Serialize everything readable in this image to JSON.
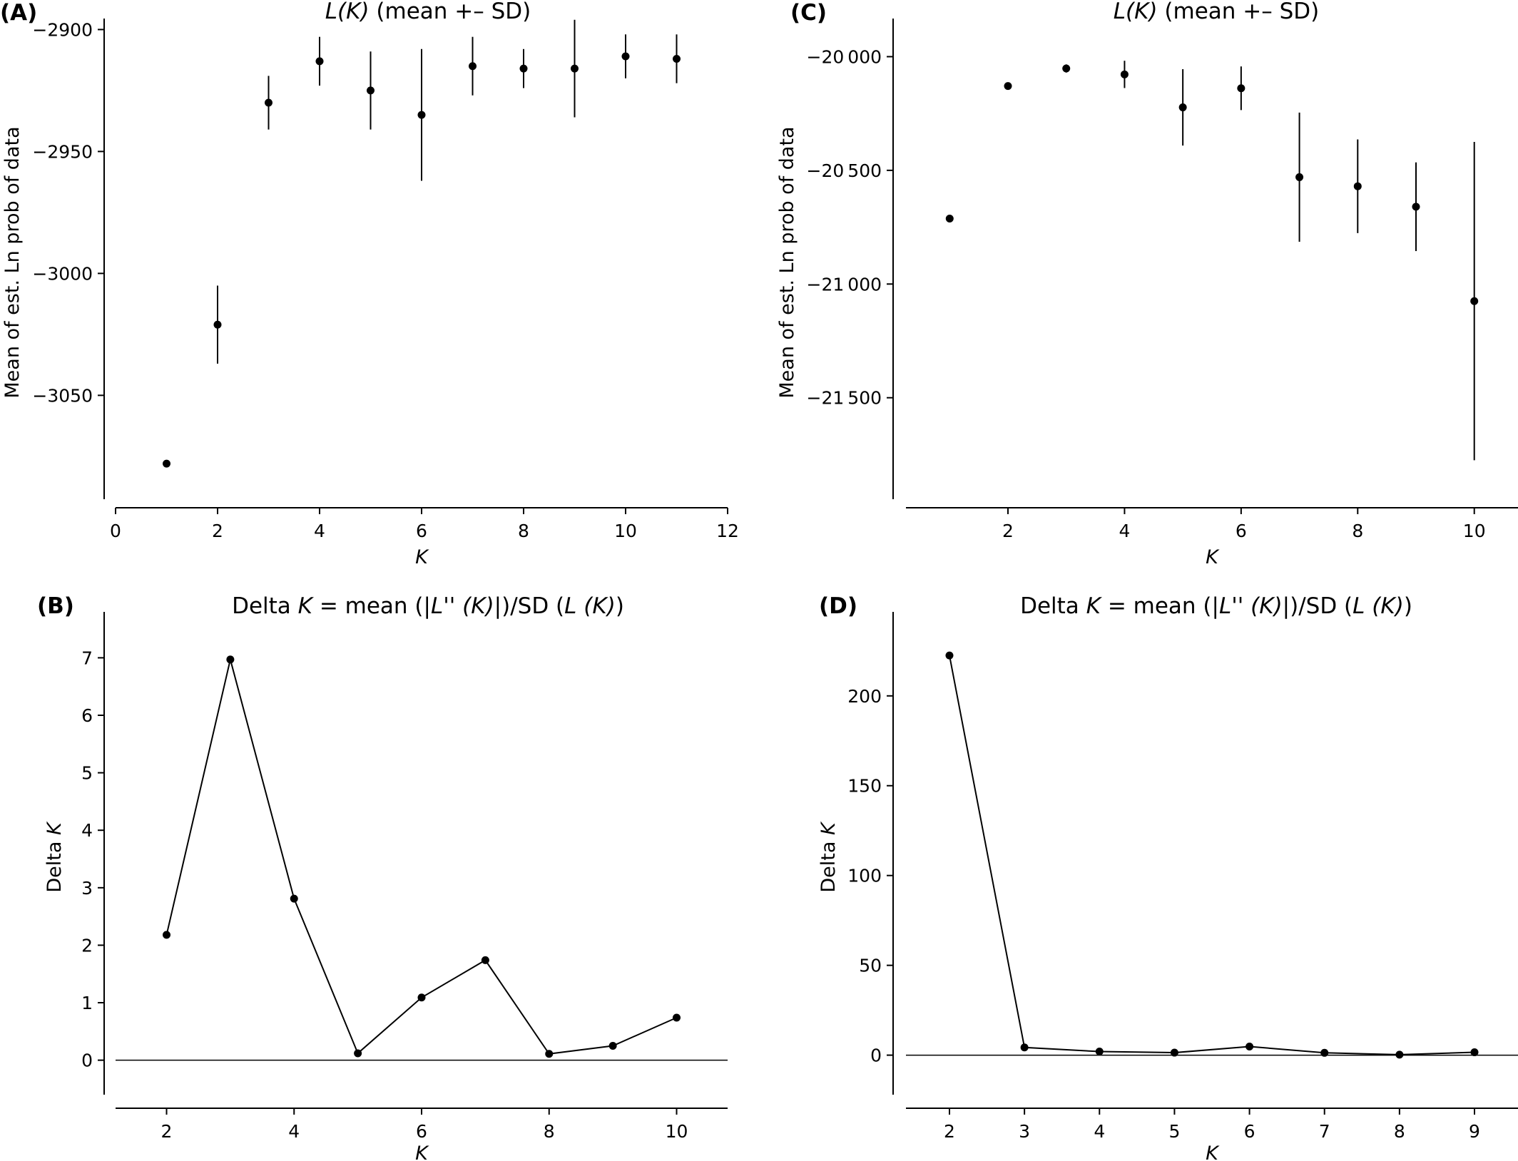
{
  "chart_data": [
    {
      "id": "A",
      "panel_label": "(A)",
      "type": "scatter",
      "title": {
        "prefix": "",
        "italic1": "L(K)",
        "middle": " (mean +– SD)",
        "italic2": "",
        "suffix": ""
      },
      "xlabel": "K",
      "ylabel": "Mean of est. Ln prob of data",
      "xlim": [
        0,
        12
      ],
      "ylim": [
        -3092,
        -2899
      ],
      "xticks": [
        0,
        2,
        4,
        6,
        8,
        10,
        12
      ],
      "xtick_labels": [
        "0",
        "2",
        "4",
        "6",
        "8",
        "10",
        "12"
      ],
      "yticks": [
        -2900,
        -2950,
        -3000,
        -3050
      ],
      "ytick_labels": [
        "−2900",
        "−2950",
        "−3000",
        "−3050"
      ],
      "zero_line": false,
      "connect": false,
      "grid": false,
      "points": [
        {
          "x": 1,
          "y": -3078
        },
        {
          "x": 2,
          "y": -3021,
          "sd": 16
        },
        {
          "x": 3,
          "y": -2930,
          "sd": 11
        },
        {
          "x": 4,
          "y": -2913,
          "sd": 10
        },
        {
          "x": 5,
          "y": -2925,
          "sd": 16
        },
        {
          "x": 6,
          "y": -2935,
          "sd": 27
        },
        {
          "x": 7,
          "y": -2915,
          "sd": 12
        },
        {
          "x": 8,
          "y": -2916,
          "sd": 8
        },
        {
          "x": 9,
          "y": -2916,
          "sd": 20
        },
        {
          "x": 10,
          "y": -2911,
          "sd": 9
        },
        {
          "x": 11,
          "y": -2912,
          "sd": 10
        }
      ]
    },
    {
      "id": "B",
      "panel_label": "(B)",
      "type": "line",
      "title": {
        "prefix": "Delta ",
        "italic1": "K",
        "middle": " = mean (|",
        "italic2": "L'' (K)",
        "suffix": "|)/SD (L (K))"
      },
      "xlabel": "K",
      "ylabel": "Delta K",
      "xlim": [
        1.2,
        10.8
      ],
      "ylim": [
        -0.6,
        7.65
      ],
      "xticks": [
        2,
        4,
        6,
        8,
        10
      ],
      "xtick_labels": [
        "2",
        "4",
        "6",
        "8",
        "10"
      ],
      "yticks": [
        0,
        1,
        2,
        3,
        4,
        5,
        6,
        7
      ],
      "ytick_labels": [
        "0",
        "1",
        "2",
        "3",
        "4",
        "5",
        "6",
        "7"
      ],
      "zero_line": true,
      "connect": true,
      "grid": false,
      "points": [
        {
          "x": 2,
          "y": 2.18
        },
        {
          "x": 3,
          "y": 6.97
        },
        {
          "x": 4,
          "y": 2.81
        },
        {
          "x": 5,
          "y": 0.12
        },
        {
          "x": 6,
          "y": 1.09
        },
        {
          "x": 7,
          "y": 1.74
        },
        {
          "x": 8,
          "y": 0.11
        },
        {
          "x": 9,
          "y": 0.25
        },
        {
          "x": 10,
          "y": 0.74
        }
      ]
    },
    {
      "id": "C",
      "panel_label": "(C)",
      "type": "scatter",
      "title": {
        "prefix": "",
        "italic1": "L(K)",
        "middle": " (mean +– SD)",
        "italic2": "",
        "suffix": ""
      },
      "xlabel": "K",
      "ylabel": "Mean of est. Ln prob of data",
      "xlim": [
        0.25,
        10.75
      ],
      "ylim": [
        -21940,
        -19870
      ],
      "xticks": [
        2,
        4,
        6,
        8,
        10
      ],
      "xtick_labels": [
        "2",
        "4",
        "6",
        "8",
        "10"
      ],
      "yticks": [
        -20000,
        -20500,
        -21000,
        -21500
      ],
      "ytick_labels": [
        "−20 000",
        "−20 500",
        "−21 000",
        "−21 500"
      ],
      "zero_line": false,
      "connect": false,
      "grid": false,
      "points": [
        {
          "x": 1,
          "y": -20712
        },
        {
          "x": 2,
          "y": -20129
        },
        {
          "x": 3,
          "y": -20052,
          "sd": 18
        },
        {
          "x": 4,
          "y": -20078,
          "sd": 60
        },
        {
          "x": 5,
          "y": -20223,
          "sd": 168
        },
        {
          "x": 6,
          "y": -20139,
          "sd": 96
        },
        {
          "x": 7,
          "y": -20530,
          "sd": 284
        },
        {
          "x": 8,
          "y": -20570,
          "sd": 206
        },
        {
          "x": 9,
          "y": -20660,
          "sd": 195
        },
        {
          "x": 10,
          "y": -21075,
          "sd": 700
        }
      ]
    },
    {
      "id": "D",
      "panel_label": "(D)",
      "type": "line",
      "title": {
        "prefix": "Delta ",
        "italic1": "K",
        "middle": " = mean (|",
        "italic2": "L'' (K)",
        "suffix": "|)/SD (L (K))"
      },
      "xlabel": "K",
      "ylabel": "Delta K",
      "xlim": [
        1.42,
        9.58
      ],
      "ylim": [
        -22,
        242
      ],
      "xticks": [
        2,
        3,
        4,
        5,
        6,
        7,
        8,
        9
      ],
      "xtick_labels": [
        "2",
        "3",
        "4",
        "5",
        "6",
        "7",
        "8",
        "9"
      ],
      "yticks": [
        0,
        50,
        100,
        150,
        200
      ],
      "ytick_labels": [
        "0",
        "50",
        "100",
        "150",
        "200"
      ],
      "zero_line": true,
      "connect": true,
      "grid": false,
      "points": [
        {
          "x": 2,
          "y": 222.5
        },
        {
          "x": 3,
          "y": 4.3
        },
        {
          "x": 4,
          "y": 2.0
        },
        {
          "x": 5,
          "y": 1.4
        },
        {
          "x": 6,
          "y": 4.8
        },
        {
          "x": 7,
          "y": 1.3
        },
        {
          "x": 8,
          "y": 0.3
        },
        {
          "x": 9,
          "y": 1.6
        }
      ]
    }
  ]
}
